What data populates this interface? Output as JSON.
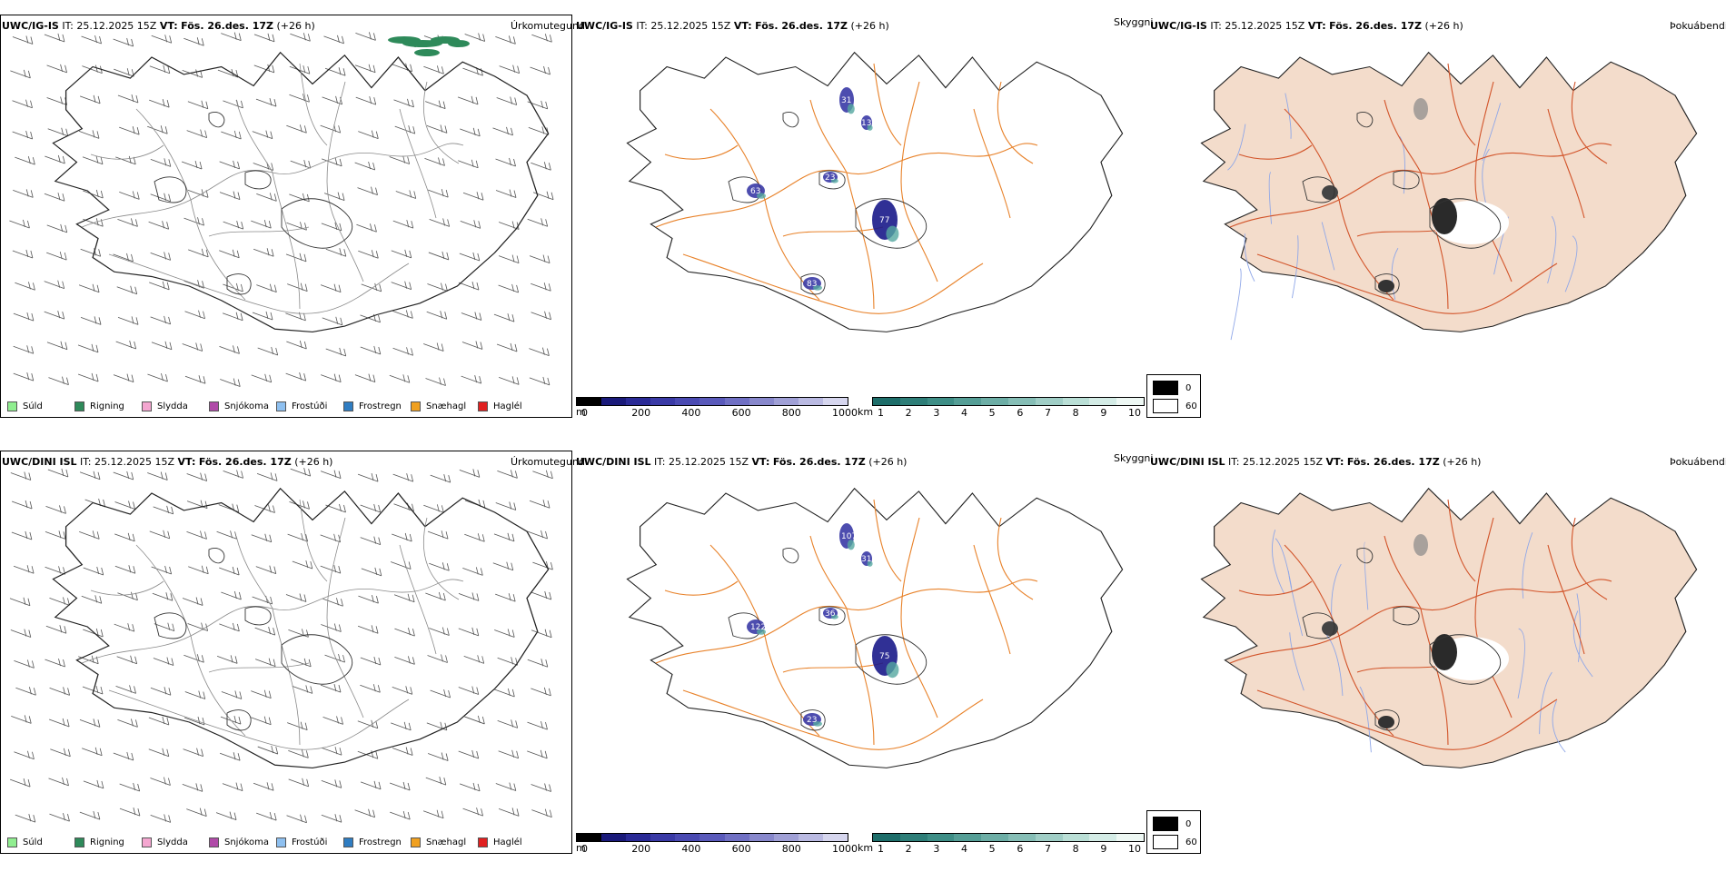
{
  "colors": {
    "road": "#e8822a",
    "road_dark": "#d2542a",
    "land_beige": "#f3dccb",
    "river": "#8fa7e8",
    "coast": "#000000",
    "frost_rain": "#2f7dc2",
    "rain": "#2e8a5a"
  },
  "rows": [
    {
      "model": "UWC/IG-IS",
      "it_label": "IT:",
      "it_value": "25.12.2025 15Z",
      "vt_label": "VT:",
      "vt_value": "Fös. 26.des. 17Z",
      "lead": "(+26 h)",
      "panel_titles": {
        "left": "Úrkomutegund",
        "middle": "Skyggni",
        "right": "Þokuábendi"
      },
      "snow_depth_labels": [
        "77",
        "63",
        "23",
        "83",
        "31",
        "13"
      ]
    },
    {
      "model": "UWC/DINI ISL",
      "it_label": "IT:",
      "it_value": "25.12.2025 15Z",
      "vt_label": "VT:",
      "vt_value": "Fös. 26.des. 17Z",
      "lead": "(+26 h)",
      "panel_titles": {
        "left": "Úrkomutegund",
        "middle": "Skyggni",
        "right": "Þokuábendi"
      },
      "snow_depth_labels": [
        "75",
        "122",
        "36",
        "23",
        "107",
        "31"
      ]
    }
  ],
  "precip_legend": [
    {
      "label": "Súld",
      "color": "#90ee90"
    },
    {
      "label": "Rigning",
      "color": "#2e8a5a"
    },
    {
      "label": "Slydda",
      "color": "#f4a6d0"
    },
    {
      "label": "Snjókoma",
      "color": "#b04aa8"
    },
    {
      "label": "Frostúði",
      "color": "#8ec0f0"
    },
    {
      "label": "Frostregn",
      "color": "#2f7dc2"
    },
    {
      "label": "Snæhagl",
      "color": "#f0a020"
    },
    {
      "label": "Haglél",
      "color": "#e02020"
    }
  ],
  "snow_scale": {
    "unit": "m",
    "ticks": [
      "0",
      "200",
      "400",
      "600",
      "800",
      "1000"
    ],
    "colors": [
      "#000000",
      "#1a1a7a",
      "#2a2a96",
      "#3a3aa6",
      "#4a4ab2",
      "#5a5abb",
      "#7070c4",
      "#8888cc",
      "#a0a0d6",
      "#babae2",
      "#d6d6ee"
    ]
  },
  "vis_scale": {
    "unit": "km",
    "ticks": [
      "1",
      "2",
      "3",
      "4",
      "5",
      "6",
      "7",
      "8",
      "9",
      "10"
    ],
    "colors": [
      "#1e6e6a",
      "#2e7e78",
      "#3e8e86",
      "#559e96",
      "#6daea6",
      "#86beb6",
      "#a0cec6",
      "#badfd6",
      "#d4ece6",
      "#eef8f4"
    ]
  },
  "fog_legend": [
    {
      "label": "0",
      "color": "#000000"
    },
    {
      "label": "60",
      "color": "#ffffff"
    }
  ]
}
